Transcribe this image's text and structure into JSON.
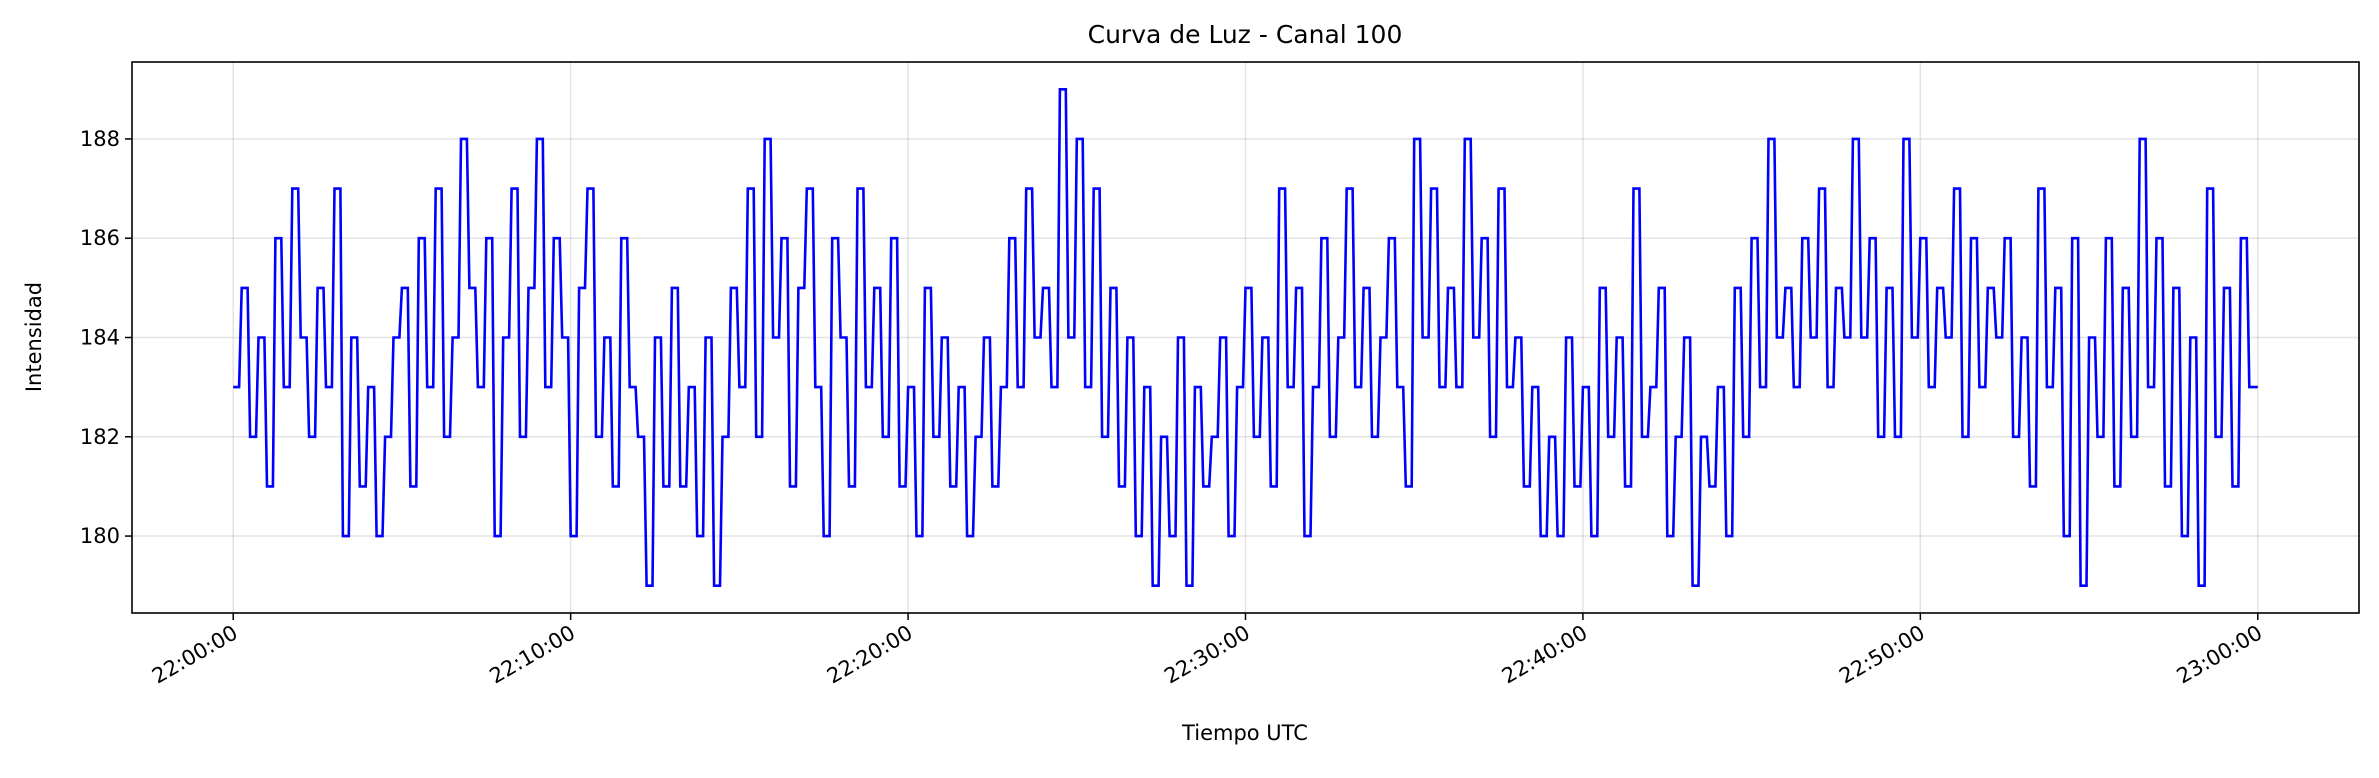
{
  "chart_data": {
    "type": "line",
    "title": "Curva de Luz - Canal 100",
    "xlabel": "Tiempo UTC",
    "ylabel": "Intensidad",
    "x_start": "22:00:00",
    "x_interval_seconds": 15,
    "xlim_minutes": [
      -3,
      63
    ],
    "ylim": [
      178.45,
      189.55
    ],
    "grid": true,
    "line_color": "#0000ff",
    "xticks_minutes": [
      0,
      10,
      20,
      30,
      40,
      50,
      60
    ],
    "xtick_labels": [
      "22:00:00",
      "22:10:00",
      "22:20:00",
      "22:30:00",
      "22:40:00",
      "22:50:00",
      "23:00:00"
    ],
    "yticks": [
      180,
      182,
      184,
      186,
      188
    ],
    "ytick_labels": [
      "180",
      "182",
      "184",
      "186",
      "188"
    ],
    "series": [
      {
        "name": "Canal 100",
        "values": [
          183,
          185,
          182,
          184,
          181,
          186,
          183,
          187,
          184,
          182,
          185,
          183,
          187,
          180,
          184,
          181,
          183,
          180,
          182,
          184,
          185,
          181,
          186,
          183,
          187,
          182,
          184,
          188,
          185,
          183,
          186,
          180,
          184,
          187,
          182,
          185,
          188,
          183,
          186,
          184,
          180,
          185,
          187,
          182,
          184,
          181,
          186,
          183,
          182,
          179,
          184,
          181,
          185,
          181,
          183,
          180,
          184,
          179,
          182,
          185,
          183,
          187,
          182,
          188,
          184,
          186,
          181,
          185,
          187,
          183,
          180,
          186,
          184,
          181,
          187,
          183,
          185,
          182,
          186,
          181,
          183,
          180,
          185,
          182,
          184,
          181,
          183,
          180,
          182,
          184,
          181,
          183,
          186,
          183,
          187,
          184,
          185,
          183,
          189,
          184,
          188,
          183,
          187,
          182,
          185,
          181,
          184,
          180,
          183,
          179,
          182,
          180,
          184,
          179,
          183,
          181,
          182,
          184,
          180,
          183,
          185,
          182,
          184,
          181,
          187,
          183,
          185,
          180,
          183,
          186,
          182,
          184,
          187,
          183,
          185,
          182,
          184,
          186,
          183,
          181,
          188,
          184,
          187,
          183,
          185,
          183,
          188,
          184,
          186,
          182,
          187,
          183,
          184,
          181,
          183,
          180,
          182,
          180,
          184,
          181,
          183,
          180,
          185,
          182,
          184,
          181,
          187,
          182,
          183,
          185,
          180,
          182,
          184,
          179,
          182,
          181,
          183,
          180,
          185,
          182,
          186,
          183,
          188,
          184,
          185,
          183,
          186,
          184,
          187,
          183,
          185,
          184,
          188,
          184,
          186,
          182,
          185,
          182,
          188,
          184,
          186,
          183,
          185,
          184,
          187,
          182,
          186,
          183,
          185,
          184,
          186,
          182,
          184,
          181,
          187,
          183,
          185,
          180,
          186,
          179,
          184,
          182,
          186,
          181,
          185,
          182,
          188,
          183,
          186,
          181,
          185,
          180,
          184,
          179,
          187,
          182,
          185,
          181,
          186,
          183,
          183
        ]
      }
    ]
  }
}
